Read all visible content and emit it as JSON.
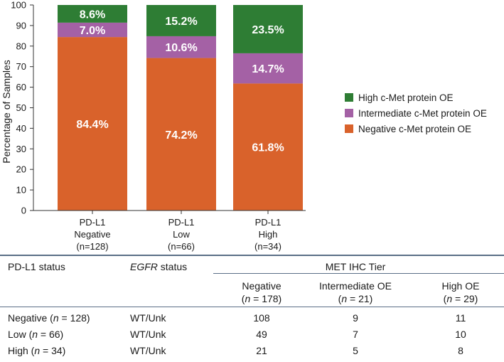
{
  "chart_data": {
    "type": "bar",
    "stacked": true,
    "ylabel": "Percentage of Samples",
    "ylim": [
      0,
      100
    ],
    "yticks": [
      0,
      10,
      20,
      30,
      40,
      50,
      60,
      70,
      80,
      90,
      100
    ],
    "categories": [
      [
        "PD-L1",
        "Negative",
        "(n=128)"
      ],
      [
        "PD-L1",
        "Low",
        "(n=66)"
      ],
      [
        "PD-L1",
        "High",
        "(n=34)"
      ]
    ],
    "series": [
      {
        "name": "Negative c-Met protein OE",
        "color": "#d9622b",
        "values": [
          84.4,
          74.2,
          61.8
        ],
        "labels": [
          "84.4%",
          "74.2%",
          "61.8%"
        ]
      },
      {
        "name": "Intermediate c-Met protein OE",
        "color": "#a461a5",
        "values": [
          7.0,
          10.6,
          14.7
        ],
        "labels": [
          "7.0%",
          "10.6%",
          "14.7%"
        ]
      },
      {
        "name": "High c-Met protein OE",
        "color": "#2e7d34",
        "values": [
          8.6,
          15.2,
          23.5
        ],
        "labels": [
          "8.6%",
          "15.2%",
          "23.5%"
        ]
      }
    ],
    "legend_position": "right",
    "legend_order": [
      2,
      1,
      0
    ],
    "grid": false
  },
  "table": {
    "headers": {
      "pdl1": "PD-L1 status",
      "egfr_italic": "EGFR",
      "egfr_rest": " status",
      "group": "MET IHC Tier",
      "cols": [
        {
          "name": "Negative",
          "n_pre": "(",
          "n_italic": "n",
          "n_post": " = 178)"
        },
        {
          "name": "Intermediate OE",
          "n_pre": "(",
          "n_italic": "n",
          "n_post": " = 21)"
        },
        {
          "name": "High OE",
          "n_pre": "(",
          "n_italic": "n",
          "n_post": " = 29)"
        }
      ]
    },
    "rows": [
      {
        "label_pre": "Negative (",
        "label_italic": "n",
        "label_post": " = 128)",
        "egfr": "WT/Unk",
        "values": [
          "108",
          "9",
          "11"
        ]
      },
      {
        "label_pre": "Low (",
        "label_italic": "n",
        "label_post": " = 66)",
        "egfr": "WT/Unk",
        "values": [
          "49",
          "7",
          "10"
        ]
      },
      {
        "label_pre": "High (",
        "label_italic": "n",
        "label_post": " = 34)",
        "egfr": "WT/Unk",
        "values": [
          "21",
          "5",
          "8"
        ]
      }
    ]
  }
}
